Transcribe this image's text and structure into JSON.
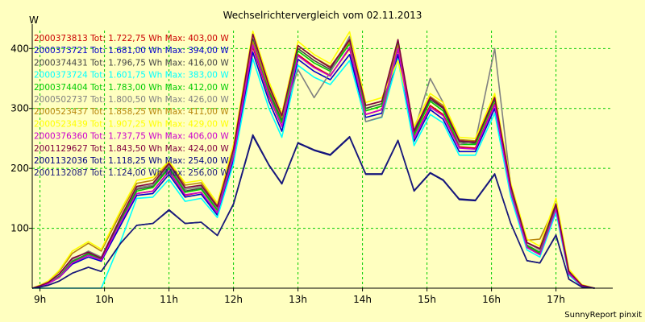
{
  "chart_data": {
    "type": "line",
    "title": "Wechselrichtervergleich vom 02.11.2013",
    "ylabel": "W",
    "xlabel": "",
    "footer": "SunnyReport pinxit",
    "x_ticks": [
      "9h",
      "10h",
      "11h",
      "12h",
      "13h",
      "14h",
      "15h",
      "16h",
      "17h"
    ],
    "y_ticks": [
      100,
      200,
      300,
      400
    ],
    "xlim": [
      8.88,
      17.88
    ],
    "ylim": [
      0,
      430
    ],
    "grid": true,
    "grid_color": "#00cc00",
    "background": "#ffffc0",
    "legend_position": "top-left",
    "x": [
      8.88,
      9.0,
      9.13,
      9.3,
      9.5,
      9.75,
      9.95,
      10.25,
      10.5,
      10.75,
      11.0,
      11.25,
      11.5,
      11.75,
      12.0,
      12.3,
      12.55,
      12.75,
      13.0,
      13.25,
      13.5,
      13.8,
      14.05,
      14.3,
      14.55,
      14.8,
      15.05,
      15.25,
      15.5,
      15.75,
      16.05,
      16.3,
      16.55,
      16.75,
      17.0,
      17.2,
      17.4,
      17.6
    ],
    "series": [
      {
        "name": "2000373813 Tot: 1.722,75 Wh Max: 403,00 W",
        "color": "#cc0000",
        "values": [
          0,
          3,
          8,
          18,
          42,
          55,
          48,
          110,
          158,
          162,
          195,
          155,
          160,
          126,
          220,
          403,
          320,
          270,
          390,
          370,
          355,
          400,
          290,
          298,
          398,
          250,
          305,
          290,
          236,
          234,
          308,
          162,
          70,
          58,
          133,
          24,
          4,
          0
        ]
      },
      {
        "name": "2000373721 Tot: 1.681,00 Wh Max: 394,00 W",
        "color": "#0000cc",
        "values": [
          0,
          2,
          8,
          18,
          40,
          52,
          45,
          105,
          155,
          158,
          190,
          152,
          157,
          122,
          215,
          394,
          312,
          262,
          382,
          362,
          348,
          390,
          285,
          292,
          390,
          245,
          298,
          282,
          228,
          228,
          300,
          158,
          68,
          56,
          130,
          23,
          4,
          0
        ]
      },
      {
        "name": "2000374431 Tot: 1.796,75 Wh Max: 416,00 W",
        "color": "#444444",
        "values": [
          0,
          3,
          9,
          20,
          45,
          58,
          50,
          115,
          165,
          170,
          202,
          162,
          167,
          132,
          228,
          416,
          330,
          280,
          400,
          380,
          365,
          412,
          300,
          308,
          412,
          258,
          315,
          300,
          244,
          242,
          318,
          168,
          72,
          60,
          138,
          25,
          4,
          0
        ]
      },
      {
        "name": "2000373724 Tot: 1.601,75 Wh Max: 383,00 W",
        "color": "#00ffff",
        "values": [
          0,
          0,
          0,
          0,
          0,
          0,
          0,
          78,
          150,
          152,
          182,
          145,
          150,
          118,
          208,
          383,
          300,
          252,
          372,
          352,
          340,
          380,
          278,
          285,
          382,
          238,
          290,
          276,
          222,
          222,
          292,
          152,
          64,
          52,
          126,
          22,
          3,
          0
        ]
      },
      {
        "name": "2000374404 Tot: 1.783,00 Wh Max: 412,00 W",
        "color": "#00cc00",
        "values": [
          0,
          3,
          9,
          19,
          44,
          57,
          49,
          113,
          162,
          168,
          200,
          160,
          165,
          130,
          225,
          412,
          326,
          276,
          396,
          376,
          362,
          408,
          296,
          304,
          408,
          255,
          312,
          296,
          240,
          240,
          314,
          166,
          71,
          59,
          136,
          24,
          4,
          0
        ]
      },
      {
        "name": "2000502737 Tot: 1.800,50 Wh Max: 426,00 W",
        "color": "#808080",
        "values": [
          0,
          4,
          10,
          22,
          48,
          62,
          52,
          118,
          168,
          172,
          205,
          165,
          170,
          134,
          230,
          426,
          340,
          285,
          365,
          318,
          360,
          420,
          278,
          286,
          400,
          262,
          350,
          310,
          240,
          245,
          400,
          170,
          76,
          64,
          142,
          28,
          5,
          0
        ]
      },
      {
        "name": "2000523437 Tot: 1.858,25 Wh Max: 411,00 W",
        "color": "#b8860b",
        "values": [
          0,
          5,
          12,
          28,
          58,
          75,
          62,
          125,
          175,
          180,
          210,
          172,
          176,
          138,
          235,
          411,
          335,
          285,
          405,
          385,
          370,
          411,
          305,
          312,
          405,
          262,
          320,
          305,
          248,
          246,
          320,
          172,
          80,
          82,
          140,
          30,
          5,
          0
        ]
      },
      {
        "name": "2000523439 Tot: 1.907,25 Wh Max: 429,00 W",
        "color": "#ffff00",
        "values": [
          0,
          5,
          12,
          30,
          62,
          78,
          65,
          130,
          180,
          185,
          212,
          176,
          180,
          142,
          240,
          429,
          345,
          292,
          412,
          390,
          375,
          428,
          310,
          318,
          380,
          270,
          325,
          310,
          252,
          250,
          325,
          175,
          82,
          70,
          150,
          32,
          6,
          0
        ]
      },
      {
        "name": "2000376360 Tot: 1.737,75 Wh Max: 406,00 W",
        "color": "#cc00cc",
        "values": [
          0,
          3,
          8,
          18,
          42,
          55,
          47,
          110,
          158,
          162,
          196,
          156,
          160,
          126,
          220,
          406,
          322,
          270,
          388,
          368,
          354,
          402,
          290,
          298,
          400,
          250,
          302,
          288,
          234,
          232,
          306,
          160,
          68,
          56,
          132,
          24,
          4,
          0
        ]
      },
      {
        "name": "2001129627 Tot: 1.843,50 Wh Max: 424,00 W",
        "color": "#800040",
        "values": [
          0,
          4,
          10,
          24,
          50,
          60,
          50,
          118,
          170,
          175,
          208,
          168,
          172,
          136,
          232,
          424,
          338,
          288,
          405,
          385,
          368,
          415,
          305,
          312,
          415,
          262,
          318,
          302,
          246,
          244,
          318,
          170,
          76,
          66,
          140,
          28,
          5,
          0
        ]
      },
      {
        "name": "2001132036 Tot: 1.118,25 Wh Max: 254,00 W",
        "color": "#000080",
        "values": [
          0,
          2,
          5,
          12,
          25,
          35,
          28,
          75,
          105,
          108,
          130,
          108,
          110,
          88,
          140,
          254,
          205,
          174,
          242,
          230,
          222,
          252,
          190,
          190,
          246,
          162,
          192,
          180,
          148,
          146,
          190,
          108,
          46,
          42,
          88,
          15,
          2,
          0
        ]
      },
      {
        "name": "2001132087 Tot: 1.124,00 Wh Max: 256,00 W",
        "color": "#1a1a7a",
        "values": [
          0,
          2,
          5,
          12,
          25,
          35,
          28,
          75,
          105,
          108,
          131,
          108,
          110,
          88,
          141,
          256,
          206,
          175,
          243,
          231,
          223,
          253,
          191,
          191,
          247,
          163,
          193,
          181,
          149,
          147,
          191,
          108,
          46,
          42,
          89,
          15,
          2,
          0
        ]
      }
    ]
  }
}
